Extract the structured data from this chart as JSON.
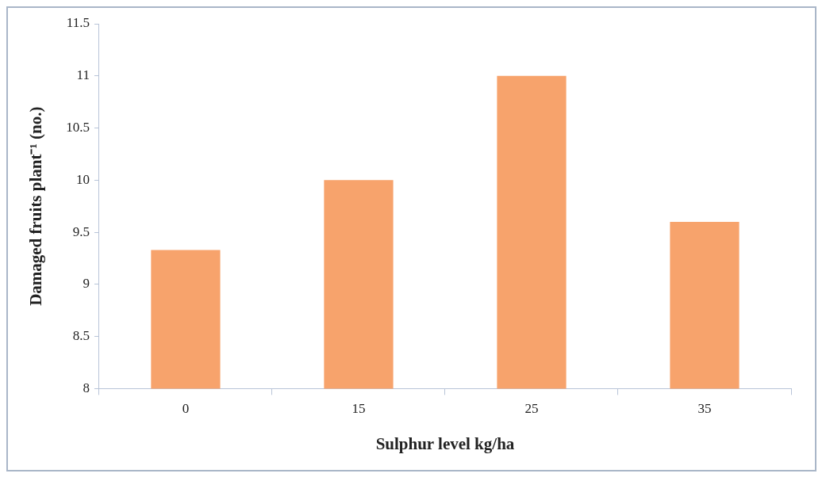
{
  "chart_data": {
    "type": "bar",
    "xlabel": "Sulphur level kg/ha",
    "ylabel": "Damaged fruits plant⁻¹ (no.)",
    "categories": [
      "0",
      "15",
      "25",
      "35"
    ],
    "values": [
      9.33,
      10.0,
      11.0,
      9.6
    ],
    "color": "#f7a36c",
    "ylim": [
      8,
      11.5
    ],
    "yticks": [
      8,
      8.5,
      9,
      9.5,
      10,
      10.5,
      11,
      11.5
    ],
    "grid": false,
    "legend": false
  }
}
